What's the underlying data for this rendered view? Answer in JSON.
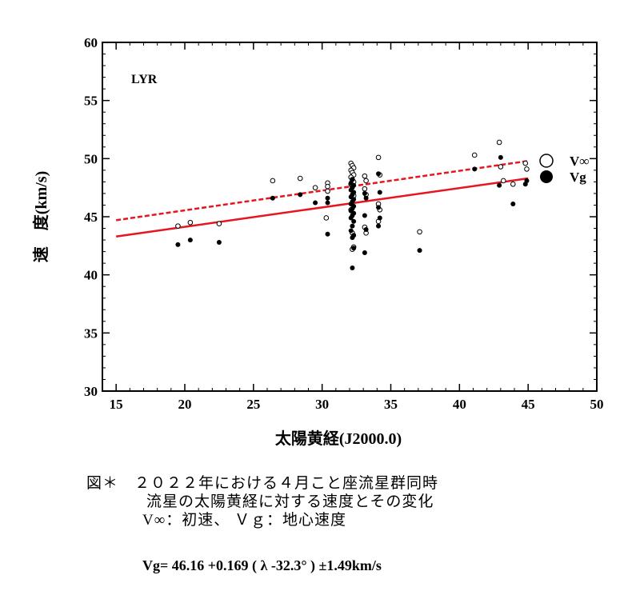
{
  "chart_data": {
    "type": "scatter",
    "station": "LYR",
    "xlabel": "太陽黄経(J2000.0)",
    "ylabel": "速　度(km/s)",
    "xlim": [
      14,
      50
    ],
    "ylim": [
      30,
      60
    ],
    "xticks": [
      15,
      20,
      25,
      30,
      35,
      40,
      45,
      50
    ],
    "yticks": [
      30,
      35,
      40,
      45,
      50,
      55,
      60
    ],
    "legend": [
      {
        "name": "V∞",
        "marker": "open-circle"
      },
      {
        "name": "Vg",
        "marker": "filled-circle"
      }
    ],
    "series": [
      {
        "name": "V∞",
        "marker": "open-circle",
        "points": [
          [
            19.5,
            44.2
          ],
          [
            20.4,
            44.5
          ],
          [
            22.5,
            44.4
          ],
          [
            26.4,
            48.1
          ],
          [
            28.4,
            48.3
          ],
          [
            29.5,
            47.5
          ],
          [
            30.4,
            47.9
          ],
          [
            30.4,
            47.2
          ],
          [
            30.3,
            44.9
          ],
          [
            30.4,
            47.6
          ],
          [
            32.1,
            49.6
          ],
          [
            32.2,
            49.4
          ],
          [
            32.3,
            49.2
          ],
          [
            32.1,
            49.0
          ],
          [
            32.2,
            48.8
          ],
          [
            32.3,
            48.6
          ],
          [
            32.1,
            48.4
          ],
          [
            32.2,
            48.2
          ],
          [
            32.3,
            48.0
          ],
          [
            32.1,
            47.8
          ],
          [
            32.2,
            47.6
          ],
          [
            32.3,
            46.8
          ],
          [
            32.1,
            45.6
          ],
          [
            32.2,
            43.6
          ],
          [
            32.3,
            42.4
          ],
          [
            32.2,
            42.2
          ],
          [
            33.1,
            48.5
          ],
          [
            33.2,
            48.1
          ],
          [
            33.1,
            47.4
          ],
          [
            33.2,
            46.9
          ],
          [
            33.1,
            44.1
          ],
          [
            33.2,
            43.6
          ],
          [
            34.1,
            50.1
          ],
          [
            34.2,
            48.6
          ],
          [
            34.1,
            46.1
          ],
          [
            34.2,
            45.6
          ],
          [
            34.1,
            44.6
          ],
          [
            37.1,
            43.7
          ],
          [
            41.1,
            50.3
          ],
          [
            42.9,
            51.4
          ],
          [
            43.0,
            49.3
          ],
          [
            43.2,
            48.1
          ],
          [
            43.9,
            47.8
          ],
          [
            44.8,
            49.6
          ],
          [
            44.9,
            49.1
          ]
        ]
      },
      {
        "name": "Vg",
        "marker": "filled-circle",
        "points": [
          [
            19.5,
            42.6
          ],
          [
            20.4,
            43.0
          ],
          [
            22.5,
            42.8
          ],
          [
            26.4,
            46.6
          ],
          [
            28.4,
            46.9
          ],
          [
            29.5,
            46.2
          ],
          [
            30.4,
            46.6
          ],
          [
            30.4,
            46.2
          ],
          [
            30.4,
            43.5
          ],
          [
            32.2,
            48.2
          ],
          [
            32.1,
            47.9
          ],
          [
            32.3,
            47.7
          ],
          [
            32.2,
            47.5
          ],
          [
            32.1,
            47.3
          ],
          [
            32.3,
            47.1
          ],
          [
            32.2,
            46.9
          ],
          [
            32.1,
            46.7
          ],
          [
            32.3,
            46.5
          ],
          [
            32.2,
            46.3
          ],
          [
            32.1,
            46.1
          ],
          [
            32.3,
            45.9
          ],
          [
            32.2,
            45.7
          ],
          [
            32.1,
            45.5
          ],
          [
            32.3,
            45.3
          ],
          [
            32.2,
            45.1
          ],
          [
            32.1,
            44.9
          ],
          [
            32.3,
            44.6
          ],
          [
            32.2,
            44.2
          ],
          [
            32.1,
            43.8
          ],
          [
            32.3,
            43.4
          ],
          [
            32.2,
            43.2
          ],
          [
            32.3,
            42.3
          ],
          [
            32.2,
            40.6
          ],
          [
            33.1,
            47.0
          ],
          [
            33.2,
            46.6
          ],
          [
            33.1,
            45.1
          ],
          [
            33.2,
            43.9
          ],
          [
            33.1,
            41.9
          ],
          [
            34.1,
            48.7
          ],
          [
            34.2,
            47.1
          ],
          [
            34.1,
            45.8
          ],
          [
            34.2,
            44.9
          ],
          [
            34.1,
            44.2
          ],
          [
            37.1,
            42.1
          ],
          [
            41.1,
            49.1
          ],
          [
            43.0,
            50.1
          ],
          [
            42.9,
            47.7
          ],
          [
            43.9,
            46.1
          ],
          [
            44.8,
            47.8
          ],
          [
            44.9,
            48.1
          ]
        ]
      }
    ],
    "fit_lines": [
      {
        "name": "V∞ fit",
        "style": "dashed",
        "color": "#e8141e",
        "x": [
          15,
          45
        ],
        "y": [
          44.7,
          49.8
        ]
      },
      {
        "name": "Vg fit",
        "style": "solid",
        "color": "#e8141e",
        "x": [
          15,
          45
        ],
        "y": [
          43.3,
          48.3
        ]
      }
    ]
  },
  "caption": {
    "line1": "図＊　２０２２年における４月こと座流星群同時",
    "line2": "流星の太陽黄経に対する速度とその変化",
    "line3": "V∞：初速、 Ｖｇ：地心速度"
  },
  "formula": "Vg= 46.16 +0.169 ( λ -32.3° ) ±1.49km/s"
}
